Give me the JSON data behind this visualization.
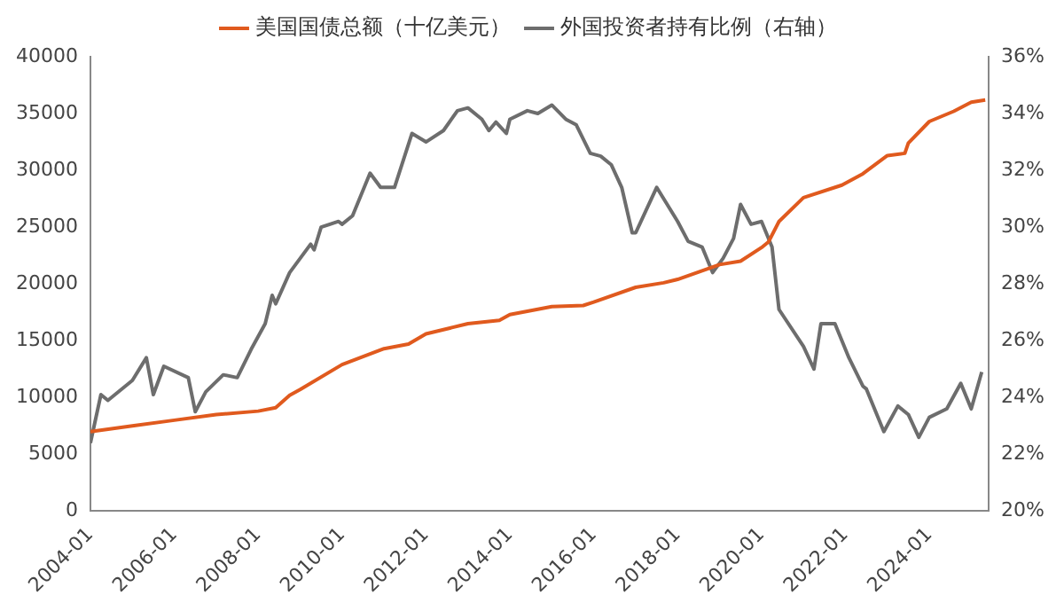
{
  "chart_data": {
    "type": "line",
    "legend": "top",
    "grid": false,
    "marker": "none",
    "line_style": "solid",
    "xlim": [
      "2004-01",
      "2025-06"
    ],
    "xticks": [
      "2004-01",
      "2006-01",
      "2008-01",
      "2010-01",
      "2012-01",
      "2014-01",
      "2016-01",
      "2018-01",
      "2020-01",
      "2022-01",
      "2024-01"
    ],
    "ylim": [
      0,
      40000
    ],
    "yticks": [
      0,
      5000,
      10000,
      15000,
      20000,
      25000,
      30000,
      35000,
      40000
    ],
    "y2lim": [
      20,
      36
    ],
    "y2ticks": [
      {
        "value": 20,
        "label": "20%"
      },
      {
        "value": 22,
        "label": "22%"
      },
      {
        "value": 24,
        "label": "24%"
      },
      {
        "value": 26,
        "label": "26%"
      },
      {
        "value": 28,
        "label": "28%"
      },
      {
        "value": 30,
        "label": "30%"
      },
      {
        "value": 32,
        "label": "32%"
      },
      {
        "value": 34,
        "label": "34%"
      },
      {
        "value": 36,
        "label": "36%"
      }
    ],
    "series": [
      {
        "name": "美国国债总额（十亿美元）",
        "color": "#e05a1e",
        "x": [
          "2004-01",
          "2005-01",
          "2006-01",
          "2007-01",
          "2008-01",
          "2008-06",
          "2008-10",
          "2009-01",
          "2010-01",
          "2011-01",
          "2011-08",
          "2012-01",
          "2013-01",
          "2013-10",
          "2014-01",
          "2015-01",
          "2015-10",
          "2016-01",
          "2017-01",
          "2017-09",
          "2018-01",
          "2019-01",
          "2019-07",
          "2020-01",
          "2020-03",
          "2020-06",
          "2021-01",
          "2021-12",
          "2022-06",
          "2023-01",
          "2023-06",
          "2023-07",
          "2024-01",
          "2024-08",
          "2025-01",
          "2025-05"
        ],
        "values": [
          7000,
          7500,
          8000,
          8500,
          8800,
          9100,
          10200,
          10700,
          12900,
          14300,
          14700,
          15600,
          16500,
          16800,
          17300,
          18000,
          18100,
          18400,
          19700,
          20100,
          20400,
          21700,
          22000,
          23200,
          23700,
          25500,
          27600,
          28700,
          29700,
          31300,
          31500,
          32400,
          34300,
          35200,
          36000,
          36200
        ]
      },
      {
        "name": "外国投资者持有比例（右轴）",
        "color": "#6d6d6d",
        "axis": "y2",
        "x": [
          "2004-01",
          "2004-04",
          "2004-06",
          "2005-01",
          "2005-05",
          "2005-07",
          "2005-10",
          "2006-05",
          "2006-07",
          "2006-10",
          "2007-03",
          "2007-07",
          "2007-11",
          "2008-03",
          "2008-05",
          "2008-06",
          "2008-10",
          "2009-04",
          "2009-05",
          "2009-07",
          "2009-12",
          "2010-01",
          "2010-04",
          "2010-09",
          "2010-12",
          "2011-04",
          "2011-09",
          "2012-01",
          "2012-06",
          "2012-10",
          "2013-01",
          "2013-05",
          "2013-07",
          "2013-09",
          "2013-12",
          "2014-01",
          "2014-06",
          "2014-09",
          "2015-01",
          "2015-05",
          "2015-08",
          "2015-12",
          "2016-03",
          "2016-06",
          "2016-09",
          "2016-12",
          "2017-01",
          "2017-04",
          "2017-07",
          "2018-01",
          "2018-04",
          "2018-08",
          "2018-11",
          "2019-02",
          "2019-05",
          "2019-07",
          "2019-10",
          "2020-01",
          "2020-04",
          "2020-06",
          "2021-01",
          "2021-04",
          "2021-06",
          "2021-10",
          "2022-02",
          "2022-06",
          "2022-07",
          "2022-12",
          "2023-04",
          "2023-07",
          "2023-10",
          "2024-01",
          "2024-06",
          "2024-10",
          "2025-01",
          "2025-04"
        ],
        "values": [
          22.4,
          24.1,
          23.9,
          24.6,
          25.4,
          24.1,
          25.1,
          24.7,
          23.5,
          24.2,
          24.8,
          24.7,
          25.7,
          26.6,
          27.6,
          27.3,
          28.4,
          29.4,
          29.2,
          30.0,
          30.2,
          30.1,
          30.4,
          31.9,
          31.4,
          31.4,
          33.3,
          33.0,
          33.4,
          34.1,
          34.2,
          33.8,
          33.4,
          33.7,
          33.3,
          33.8,
          34.1,
          34.0,
          34.3,
          33.8,
          33.6,
          32.6,
          32.5,
          32.2,
          31.4,
          29.8,
          29.8,
          30.6,
          31.4,
          30.2,
          29.5,
          29.3,
          28.4,
          28.9,
          29.6,
          30.8,
          30.1,
          30.2,
          29.3,
          27.1,
          25.8,
          25.0,
          26.6,
          26.6,
          25.4,
          24.4,
          24.3,
          22.8,
          23.7,
          23.4,
          22.6,
          23.3,
          23.6,
          24.5,
          23.6,
          24.9
        ]
      }
    ]
  }
}
